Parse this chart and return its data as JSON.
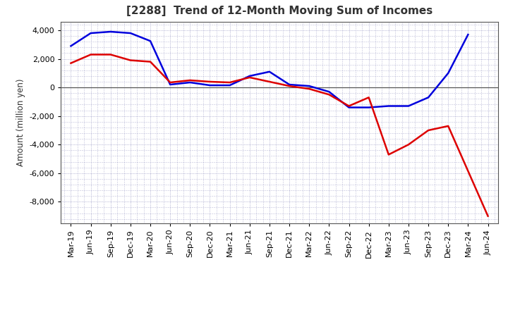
{
  "title": "[2288]  Trend of 12-Month Moving Sum of Incomes",
  "ylabel": "Amount (million yen)",
  "background_color": "#ffffff",
  "plot_bg_color": "#ffffff",
  "grid_color": "#8888bb",
  "title_color": "#333333",
  "x_labels": [
    "Mar-19",
    "Jun-19",
    "Sep-19",
    "Dec-19",
    "Mar-20",
    "Jun-20",
    "Sep-20",
    "Dec-20",
    "Mar-21",
    "Jun-21",
    "Sep-21",
    "Dec-21",
    "Mar-22",
    "Jun-22",
    "Sep-22",
    "Dec-22",
    "Mar-23",
    "Jun-23",
    "Sep-23",
    "Dec-23",
    "Mar-24",
    "Jun-24"
  ],
  "ordinary_income": [
    2900,
    3800,
    3900,
    3800,
    3250,
    200,
    350,
    150,
    150,
    800,
    1100,
    200,
    100,
    -300,
    -1400,
    -1400,
    -1300,
    -1300,
    -700,
    1000,
    3700,
    null
  ],
  "net_income": [
    1700,
    2300,
    2300,
    1900,
    1800,
    350,
    500,
    400,
    350,
    700,
    400,
    100,
    -100,
    -500,
    -1300,
    -700,
    -4700,
    -4000,
    -3000,
    -2700,
    null,
    -9000
  ],
  "ordinary_color": "#0000dd",
  "net_color": "#dd0000",
  "ylim": [
    -9500,
    4600
  ],
  "yticks": [
    -8000,
    -6000,
    -4000,
    -2000,
    0,
    2000,
    4000
  ],
  "line_width": 1.8,
  "title_fontsize": 11,
  "axis_fontsize": 8.5,
  "tick_fontsize": 8
}
